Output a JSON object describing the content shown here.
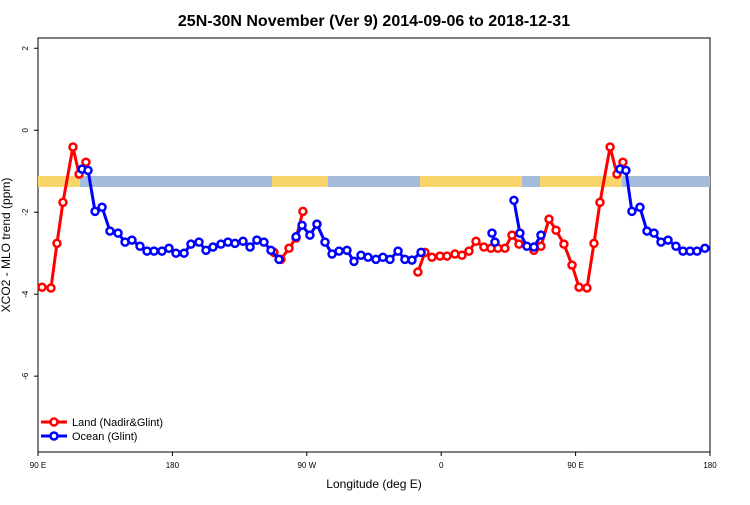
{
  "chart_data": {
    "type": "line",
    "title": "25N-30N November (Ver 9)   2014-09-06 to 2018-12-31",
    "x_label": "Longitude (deg E)",
    "y_label": "XCO2 - MLO trend (ppm)",
    "xlim": [
      90,
      540
    ],
    "ylim": [
      -7.85,
      2.25
    ],
    "xticks": [
      {
        "value": 90,
        "label": "90 E"
      },
      {
        "value": 180,
        "label": "180"
      },
      {
        "value": 270,
        "label": "90 W"
      },
      {
        "value": 360,
        "label": "0"
      },
      {
        "value": 450,
        "label": "90 E"
      },
      {
        "value": 540,
        "label": "180"
      }
    ],
    "yticks": [
      -6,
      -4,
      -2,
      0,
      2
    ],
    "legend": "bottom-left",
    "series": [
      {
        "name": "Land (Nadir&Glint)",
        "color": "#ff0000",
        "x": [
          92.7,
          98.7,
          102.7,
          106.7,
          113.4,
          117.5,
          122.1,
          null,
          248.0,
          252.7,
          258.1,
          262.8,
          267.4,
          null,
          344.4,
          349.1,
          353.8,
          359.2,
          363.9,
          369.2,
          373.9,
          378.6,
          383.3,
          388.6,
          393.3,
          398.0,
          402.7,
          407.4,
          412.1,
          null,
          422.1,
          426.8,
          432.2,
          436.9,
          442.2,
          447.6,
          452.3,
          457.6,
          462.3,
          466.3,
          473.1,
          477.7,
          481.7
        ],
        "values": [
          -3.83,
          -3.85,
          -2.76,
          -1.76,
          -0.41,
          -1.07,
          -0.78,
          null,
          -2.98,
          -3.15,
          -2.88,
          -2.63,
          -1.98,
          null,
          -3.46,
          -2.98,
          -3.1,
          -3.07,
          -3.07,
          -3.02,
          -3.05,
          -2.95,
          -2.71,
          -2.85,
          -2.88,
          -2.88,
          -2.88,
          -2.56,
          -2.78,
          null,
          -2.93,
          -2.83,
          -2.17,
          -2.44,
          -2.78,
          -3.29,
          -3.83,
          -3.85,
          -2.76,
          -1.76,
          -0.41,
          -1.07,
          -0.78
        ]
      },
      {
        "name": "Ocean (Glint)",
        "color": "#0000ff",
        "x": [
          119.5,
          123.5,
          128.2,
          132.9,
          138.2,
          143.6,
          148.3,
          152.9,
          158.3,
          163.0,
          167.7,
          173.0,
          177.7,
          182.4,
          187.8,
          192.4,
          197.8,
          202.5,
          207.2,
          212.5,
          217.2,
          221.9,
          227.3,
          232.0,
          236.6,
          241.3,
          246.0,
          251.4,
          null,
          262.8,
          266.8,
          272.1,
          276.8,
          282.2,
          286.9,
          291.6,
          296.9,
          301.6,
          306.3,
          311.0,
          316.3,
          321.0,
          325.7,
          331.1,
          335.7,
          340.4,
          346.5,
          null,
          394.0,
          396.0,
          null,
          408.7,
          412.7,
          417.4,
          422.1,
          426.8,
          null,
          479.7,
          483.7,
          487.7,
          493.1,
          497.8,
          502.5,
          507.2,
          511.9,
          517.2,
          521.9,
          526.6,
          531.3,
          536.6
        ],
        "values": [
          -0.95,
          -0.98,
          -1.98,
          -1.88,
          -2.46,
          -2.51,
          -2.73,
          -2.68,
          -2.83,
          -2.95,
          -2.95,
          -2.95,
          -2.88,
          -3.0,
          -3.0,
          -2.78,
          -2.73,
          -2.93,
          -2.85,
          -2.78,
          -2.73,
          -2.76,
          -2.71,
          -2.85,
          -2.68,
          -2.73,
          -2.93,
          -3.15,
          null,
          -2.6,
          -2.32,
          -2.56,
          -2.29,
          -2.73,
          -3.02,
          -2.95,
          -2.93,
          -3.2,
          -3.05,
          -3.1,
          -3.15,
          -3.1,
          -3.15,
          -2.95,
          -3.15,
          -3.17,
          -2.98,
          null,
          -2.51,
          -2.73,
          null,
          -1.71,
          -2.51,
          -2.83,
          -2.85,
          -2.56,
          null,
          -0.95,
          -0.98,
          -1.98,
          -1.88,
          -2.46,
          -2.51,
          -2.73,
          -2.68,
          -2.83,
          -2.95,
          -2.95,
          -2.95,
          -2.88
        ]
      }
    ]
  }
}
